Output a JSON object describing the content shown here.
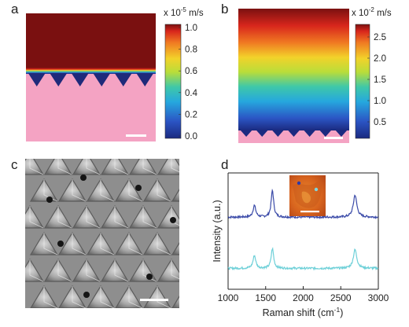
{
  "panels": {
    "a": {
      "letter": "a",
      "unit_prefix": "x 10",
      "unit_exp": "-5",
      "unit_suffix": " m/s",
      "ticks": [
        "1.0",
        "0.8",
        "0.6",
        "0.4",
        "0.2",
        "0.0"
      ]
    },
    "b": {
      "letter": "b",
      "unit_prefix": "x 10",
      "unit_exp": "-2",
      "unit_suffix": " m/s",
      "ticks": [
        "2.5",
        "2.0",
        "1.5",
        "1.0",
        "0.5"
      ]
    },
    "c": {
      "letter": "c"
    },
    "d": {
      "letter": "d"
    }
  },
  "colors": {
    "field_max": "#7a1010",
    "substrate_pink": "#f4a3c3",
    "groove_navy": "#1f2a7a",
    "spectrum_top": "#3a4aa8",
    "spectrum_bottom": "#6ed0d8",
    "sem_background": "#8e8e8e"
  },
  "chart_data": {
    "type": "line",
    "xlabel": "Raman shift (cm",
    "xlabel_exp": "-1",
    "xlabel_end": ")",
    "ylabel": "Intensity (a.u.)",
    "xlim": [
      1000,
      3000
    ],
    "xticks": [
      "1000",
      "1500",
      "2000",
      "2500",
      "3000"
    ],
    "xtick_values": [
      1000,
      1500,
      2000,
      2500,
      3000
    ],
    "series": [
      {
        "baseline": 0.62,
        "color": "#3a4aa8",
        "peaks": [
          {
            "x": 1350,
            "height": 0.1,
            "width": 22
          },
          {
            "x": 1590,
            "height": 0.23,
            "width": 20
          },
          {
            "x": 2690,
            "height": 0.19,
            "width": 28
          }
        ]
      },
      {
        "baseline": 0.18,
        "color": "#6ed0d8",
        "peaks": [
          {
            "x": 1350,
            "height": 0.11,
            "width": 22
          },
          {
            "x": 1590,
            "height": 0.17,
            "width": 20
          },
          {
            "x": 2690,
            "height": 0.16,
            "width": 28
          }
        ]
      }
    ]
  }
}
